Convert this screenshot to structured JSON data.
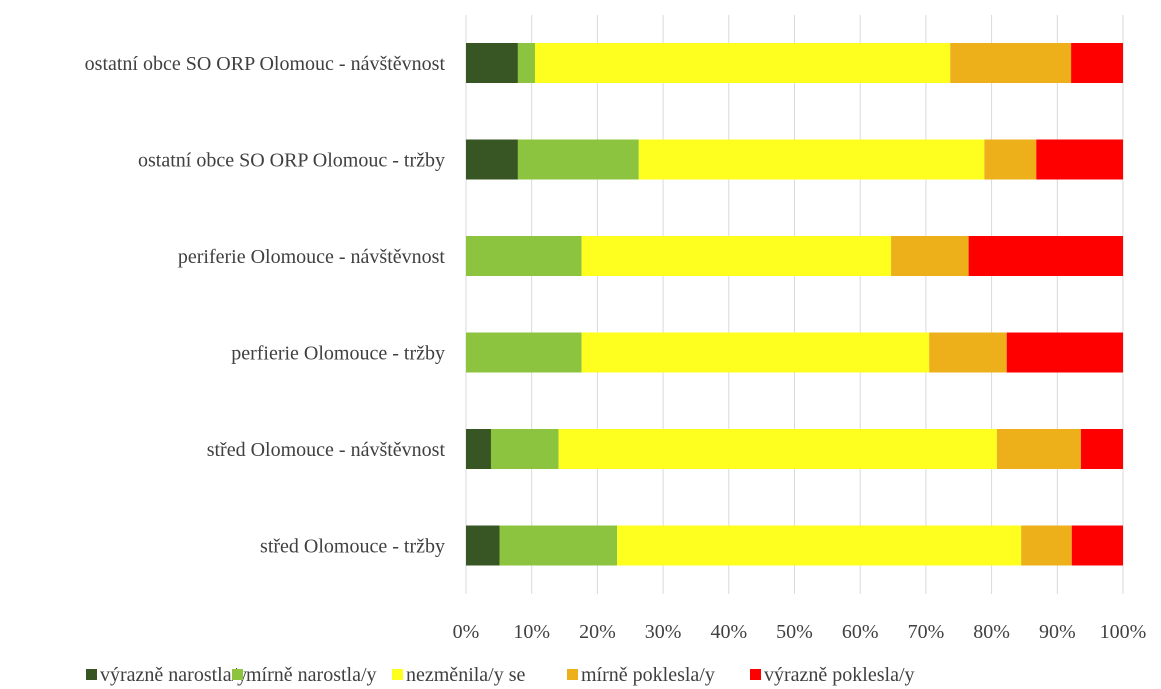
{
  "chart_data": {
    "type": "bar",
    "orientation": "horizontal",
    "stacked": "percent",
    "title": "",
    "xlabel": "",
    "ylabel": "",
    "xlim": [
      0,
      100
    ],
    "x_ticks": [
      "0%",
      "10%",
      "20%",
      "30%",
      "40%",
      "50%",
      "60%",
      "70%",
      "80%",
      "90%",
      "100%"
    ],
    "grid": "vertical",
    "legend_position": "bottom",
    "categories": [
      "ostatní obce SO ORP Olomouc - návštěvnost",
      "ostatní obce SO ORP Olomouc - tržby",
      "periferie Olomouce - návštěvnost",
      "perfierie Olomouce - tržby",
      "střed Olomouce - návštěvnost",
      "střed Olomouce - tržby"
    ],
    "series": [
      {
        "name": "výrazně narostla/y",
        "color": "#375623",
        "values": [
          7.9,
          7.9,
          0,
          0,
          3.8,
          5.1
        ]
      },
      {
        "name": "mírně narostla/y",
        "color": "#8dc43f",
        "values": [
          2.6,
          18.4,
          17.6,
          17.6,
          10.3,
          17.9
        ]
      },
      {
        "name": "nezměnila/y se",
        "color": "#ffff1f",
        "values": [
          63.2,
          52.6,
          47.1,
          52.9,
          66.7,
          61.5
        ]
      },
      {
        "name": "mírně poklesla/y",
        "color": "#edb01b",
        "values": [
          18.4,
          7.9,
          11.8,
          11.8,
          12.8,
          7.7
        ]
      },
      {
        "name": "výrazně poklesla/y",
        "color": "#ff0000",
        "values": [
          7.9,
          13.2,
          23.5,
          17.7,
          6.4,
          7.8
        ]
      }
    ]
  }
}
